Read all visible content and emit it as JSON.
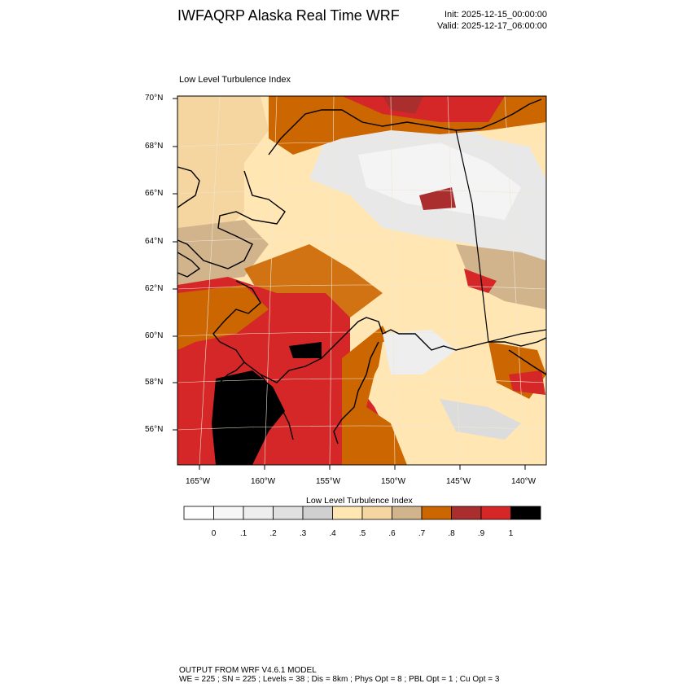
{
  "header": {
    "title": "IWFAQRP Alaska Real Time WRF",
    "init": "Init: 2025-12-15_00:00:00",
    "valid": "Valid: 2025-12-17_06:00:00"
  },
  "map": {
    "label": "Low Level Turbulence Index",
    "lat_labels": [
      "70°N",
      "68°N",
      "66°N",
      "64°N",
      "62°N",
      "60°N",
      "58°N",
      "56°N"
    ],
    "lon_labels": [
      "165°W",
      "160°W",
      "155°W",
      "150°W",
      "145°W",
      "140°W"
    ],
    "colors": {
      "ocean_high": "#d62728",
      "land_low": "#ffe6b3",
      "snow": "#e8e8e8",
      "orange": "#cc6600",
      "tan": "#d2b48c",
      "black": "#000000"
    }
  },
  "colorbar": {
    "title": "Low Level Turbulence Index",
    "tick_labels": [
      "0",
      ".1",
      ".2",
      ".3",
      ".4",
      ".5",
      ".6",
      ".7",
      ".8",
      ".9",
      "1"
    ],
    "colors": [
      "#ffffff",
      "#f7f7f7",
      "#eeeeee",
      "#e0e0e0",
      "#d0d0d0",
      "#ffe6b3",
      "#f5d5a0",
      "#d2b48c",
      "#cc6600",
      "#aa2e2e",
      "#d62728",
      "#000000"
    ]
  },
  "footer": {
    "line1": "OUTPUT FROM WRF V4.6.1 MODEL",
    "line2": "WE = 225 ; SN = 225 ; Levels = 38 ; Dis = 8km ; Phys Opt = 8 ; PBL Opt = 1 ; Cu Opt = 3"
  }
}
